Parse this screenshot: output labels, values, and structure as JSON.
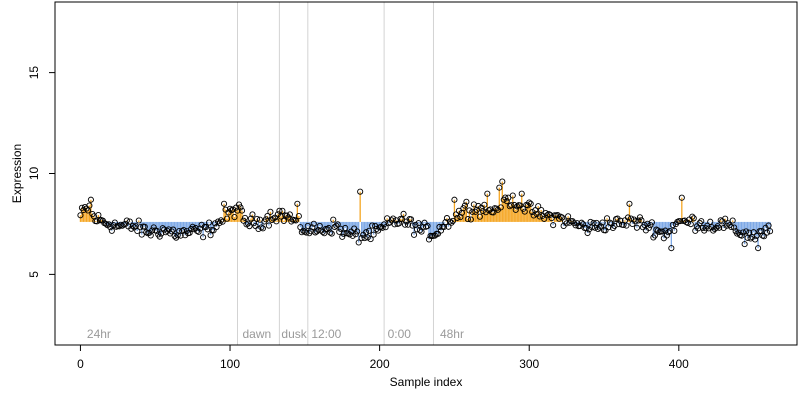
{
  "chart_data": {
    "type": "scatter",
    "title": "",
    "xlabel": "Sample index",
    "ylabel": "Expression",
    "xlim": [
      -17,
      479
    ],
    "ylim": [
      1.5,
      18.5
    ],
    "xticks": [
      0,
      100,
      200,
      300,
      400
    ],
    "yticks": [
      5,
      10,
      15
    ],
    "grid": false,
    "baseline": 7.6,
    "colors": {
      "above_baseline": "#f5a623",
      "below_baseline": "#7ea9e6",
      "marker_edge": "#000000",
      "divider": "#d3d3d3",
      "annotation_text": "#9a9a9a"
    },
    "dividers": [
      105,
      133,
      152,
      203,
      236
    ],
    "annotations": [
      {
        "x": 3,
        "text": "24hr"
      },
      {
        "x": 107,
        "text": "dawn"
      },
      {
        "x": 133,
        "text": "dusk"
      },
      {
        "x": 153,
        "text": "12:00"
      },
      {
        "x": 204,
        "text": "0:00"
      },
      {
        "x": 239,
        "text": "48hr"
      }
    ],
    "anchors": [
      [
        0,
        7.9
      ],
      [
        3,
        8.2
      ],
      [
        6,
        8.3
      ],
      [
        9,
        7.8
      ],
      [
        15,
        7.6
      ],
      [
        25,
        7.4
      ],
      [
        35,
        7.4
      ],
      [
        45,
        7.1
      ],
      [
        55,
        7.2
      ],
      [
        65,
        7.0
      ],
      [
        75,
        7.1
      ],
      [
        85,
        7.2
      ],
      [
        95,
        7.7
      ],
      [
        101,
        8.1
      ],
      [
        105,
        8.3
      ],
      [
        110,
        7.6
      ],
      [
        120,
        7.6
      ],
      [
        128,
        7.9
      ],
      [
        133,
        8.0
      ],
      [
        140,
        7.8
      ],
      [
        148,
        7.3
      ],
      [
        152,
        7.2
      ],
      [
        160,
        7.2
      ],
      [
        170,
        7.4
      ],
      [
        178,
        7.0
      ],
      [
        188,
        6.9
      ],
      [
        195,
        7.0
      ],
      [
        203,
        7.3
      ],
      [
        208,
        7.6
      ],
      [
        215,
        7.7
      ],
      [
        225,
        7.3
      ],
      [
        236,
        7.0
      ],
      [
        245,
        7.6
      ],
      [
        255,
        8.1
      ],
      [
        265,
        8.3
      ],
      [
        275,
        8.1
      ],
      [
        282,
        8.7
      ],
      [
        290,
        8.6
      ],
      [
        300,
        8.2
      ],
      [
        310,
        7.9
      ],
      [
        320,
        7.8
      ],
      [
        330,
        7.5
      ],
      [
        340,
        7.3
      ],
      [
        350,
        7.5
      ],
      [
        360,
        7.5
      ],
      [
        370,
        7.6
      ],
      [
        380,
        7.4
      ],
      [
        390,
        7.0
      ],
      [
        400,
        7.6
      ],
      [
        410,
        7.6
      ],
      [
        420,
        7.4
      ],
      [
        430,
        7.5
      ],
      [
        440,
        7.1
      ],
      [
        450,
        6.9
      ],
      [
        460,
        7.1
      ]
    ],
    "noise_amplitude": 0.35,
    "spikes": [
      [
        7,
        8.7
      ],
      [
        96,
        8.5
      ],
      [
        145,
        8.5
      ],
      [
        187,
        9.1
      ],
      [
        282,
        9.6
      ],
      [
        280,
        9.3
      ],
      [
        295,
        9.0
      ],
      [
        272,
        9.0
      ],
      [
        250,
        8.7
      ],
      [
        402,
        8.8
      ],
      [
        395,
        6.3
      ],
      [
        444,
        6.5
      ],
      [
        453,
        6.3
      ],
      [
        367,
        8.5
      ],
      [
        258,
        8.6
      ]
    ],
    "n_points": 462
  }
}
